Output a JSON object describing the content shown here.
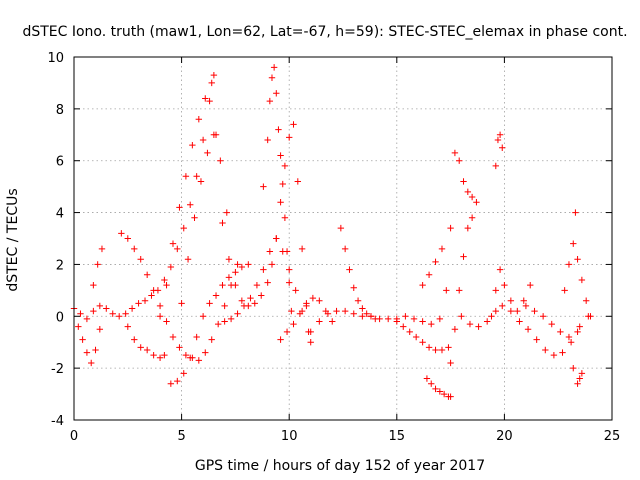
{
  "chart_data": {
    "type": "scatter",
    "title": "dSTEC Iono. truth (maw1, Lon=62, Lat=-67, h=59): STEC-STEC_elemax in phase cont.",
    "xlabel": "GPS time / hours of day 152 of year 2017",
    "ylabel": "dSTEC  / TECUs",
    "xlim": [
      0,
      25
    ],
    "ylim": [
      -4,
      10
    ],
    "xticks": [
      0,
      5,
      10,
      15,
      20,
      25
    ],
    "yticks": [
      -4,
      -2,
      0,
      2,
      4,
      6,
      8,
      10
    ],
    "grid": true,
    "legend": "none",
    "marker": "plus",
    "marker_color": "#ff0000",
    "series": [
      {
        "x": [
          0.0,
          0.3,
          0.6,
          0.9,
          1.2,
          1.5,
          1.8,
          2.1,
          2.4,
          2.7,
          3.0,
          3.3,
          3.6,
          3.9,
          4.2,
          4.5,
          4.8,
          5.1,
          5.4,
          5.7,
          6.0,
          6.3,
          6.5
        ],
        "y": [
          0.3,
          0.1,
          -0.1,
          0.2,
          0.4,
          0.3,
          0.1,
          0.0,
          0.1,
          0.3,
          0.5,
          0.6,
          0.8,
          1.0,
          1.4,
          1.9,
          2.6,
          3.4,
          4.3,
          5.4,
          6.8,
          8.3,
          9.3
        ]
      },
      {
        "x": [
          6.6,
          6.9,
          7.2,
          7.5,
          7.8,
          8.1,
          8.4,
          8.7,
          9.0,
          9.2,
          9.4,
          9.6,
          9.8,
          10.0,
          10.2,
          10.4,
          10.6,
          10.8,
          11.0
        ],
        "y": [
          7.0,
          3.6,
          2.2,
          1.2,
          0.6,
          0.4,
          0.5,
          0.8,
          1.3,
          2.0,
          3.0,
          4.4,
          5.8,
          6.9,
          7.4,
          5.2,
          2.6,
          0.5,
          -1.0
        ]
      },
      {
        "x": [
          8.8,
          9.0,
          9.1,
          9.2,
          9.3,
          9.4,
          9.5,
          9.6,
          9.7,
          9.8,
          9.9,
          10.0,
          10.1
        ],
        "y": [
          5.0,
          6.8,
          8.3,
          9.2,
          9.6,
          8.6,
          7.2,
          6.2,
          5.1,
          3.8,
          2.5,
          1.3,
          0.2
        ]
      },
      {
        "x": [
          0.2,
          0.4,
          0.6,
          0.8,
          1.0,
          1.2
        ],
        "y": [
          -0.4,
          -0.9,
          -1.4,
          -1.8,
          -1.3,
          -0.5
        ]
      },
      {
        "x": [
          0.9,
          1.1,
          1.3
        ],
        "y": [
          1.2,
          2.0,
          2.6
        ]
      },
      {
        "x": [
          2.2,
          2.5,
          2.8,
          3.1,
          3.4,
          3.7,
          4.0,
          4.3,
          4.6,
          4.9,
          5.2,
          5.5
        ],
        "y": [
          3.2,
          3.0,
          2.6,
          2.2,
          1.6,
          1.0,
          0.4,
          -0.2,
          -0.8,
          -1.2,
          -1.5,
          -1.6
        ]
      },
      {
        "x": [
          2.5,
          2.8,
          3.1,
          3.4,
          3.7,
          4.0,
          4.2
        ],
        "y": [
          -0.4,
          -0.9,
          -1.2,
          -1.3,
          -1.5,
          -1.6,
          -1.5
        ]
      },
      {
        "x": [
          4.5,
          4.8,
          5.1,
          5.4,
          5.7,
          6.0,
          6.3,
          6.6,
          6.9,
          7.2,
          7.5,
          7.8,
          8.1
        ],
        "y": [
          -2.6,
          -2.5,
          -2.2,
          -1.6,
          -0.8,
          0.0,
          0.5,
          0.8,
          1.2,
          1.5,
          1.7,
          1.9,
          2.0
        ]
      },
      {
        "x": [
          4.0,
          4.3,
          4.6,
          4.9,
          5.2,
          5.5,
          5.8,
          6.1,
          6.4
        ],
        "y": [
          0.0,
          1.2,
          2.8,
          4.2,
          5.4,
          6.6,
          7.6,
          8.4,
          9.0
        ]
      },
      {
        "x": [
          5.0,
          5.3,
          5.6,
          5.9,
          6.2,
          6.5,
          6.8,
          7.1
        ],
        "y": [
          0.5,
          2.2,
          3.8,
          5.2,
          6.3,
          7.0,
          6.0,
          4.0
        ]
      },
      {
        "x": [
          7.0,
          7.3,
          7.6,
          7.9,
          8.2,
          8.5,
          8.8,
          9.1,
          9.4,
          9.7,
          10.0,
          10.3,
          10.6,
          10.9
        ],
        "y": [
          -0.2,
          -0.1,
          0.1,
          0.4,
          0.7,
          1.2,
          1.8,
          2.5,
          3.0,
          2.5,
          1.8,
          1.0,
          0.2,
          -0.6
        ]
      },
      {
        "x": [
          5.8,
          6.1,
          6.4,
          6.7,
          7.0,
          7.3,
          7.6
        ],
        "y": [
          -1.7,
          -1.4,
          -0.9,
          -0.3,
          0.4,
          1.2,
          2.0
        ]
      },
      {
        "x": [
          9.6,
          9.9,
          10.2,
          10.5,
          10.8,
          11.1,
          11.4,
          11.7,
          12.0
        ],
        "y": [
          -0.9,
          -0.6,
          -0.3,
          0.1,
          0.4,
          0.7,
          0.6,
          0.2,
          -0.2
        ]
      },
      {
        "x": [
          12.4,
          12.6,
          12.8,
          13.0,
          13.2,
          13.4,
          13.6,
          13.8,
          14.0
        ],
        "y": [
          3.4,
          2.6,
          1.8,
          1.1,
          0.6,
          0.3,
          0.1,
          0.0,
          -0.1
        ]
      },
      {
        "x": [
          11.0,
          11.4,
          11.8,
          12.2,
          12.6,
          13.0,
          13.4,
          13.8,
          14.2,
          14.6,
          15.0,
          15.4,
          15.8,
          16.2,
          16.6,
          17.0
        ],
        "y": [
          -0.6,
          -0.2,
          0.1,
          0.2,
          0.2,
          0.1,
          0.0,
          0.0,
          -0.1,
          -0.1,
          -0.1,
          0.0,
          -0.1,
          -0.2,
          -0.3,
          -0.1
        ]
      },
      {
        "x": [
          15.0,
          15.3,
          15.6,
          15.9,
          16.2,
          16.5,
          16.8,
          17.1,
          17.4
        ],
        "y": [
          -0.2,
          -0.4,
          -0.6,
          -0.8,
          -1.0,
          -1.2,
          -1.3,
          -1.3,
          -1.2
        ]
      },
      {
        "x": [
          16.2,
          16.5,
          16.8,
          17.1
        ],
        "y": [
          1.2,
          1.6,
          2.1,
          2.6
        ]
      },
      {
        "x": [
          16.4,
          16.6,
          16.8,
          17.0,
          17.2,
          17.4,
          17.5
        ],
        "y": [
          -2.4,
          -2.6,
          -2.8,
          -2.9,
          -3.0,
          -3.1,
          -3.1
        ]
      },
      {
        "x": [
          17.3,
          17.5,
          17.7,
          17.9,
          18.1,
          18.3,
          18.5,
          18.7
        ],
        "y": [
          1.0,
          3.4,
          6.3,
          6.0,
          5.2,
          4.8,
          4.6,
          4.4
        ]
      },
      {
        "x": [
          17.5,
          17.7,
          17.9,
          18.1,
          18.3,
          18.5
        ],
        "y": [
          -1.8,
          -0.5,
          1.0,
          2.3,
          3.4,
          3.8
        ]
      },
      {
        "x": [
          18.0,
          18.4,
          18.8,
          19.2,
          19.6,
          19.9,
          20.3,
          20.7,
          21.1,
          21.5,
          21.9,
          22.3,
          22.7,
          23.1,
          23.5,
          23.9
        ],
        "y": [
          0.0,
          -0.3,
          -0.4,
          -0.2,
          0.2,
          0.4,
          0.2,
          -0.2,
          -0.5,
          -0.9,
          -1.3,
          -1.5,
          -1.4,
          -1.0,
          -0.4,
          0.0
        ]
      },
      {
        "x": [
          19.6,
          19.7,
          19.8,
          19.9
        ],
        "y": [
          5.8,
          6.8,
          7.0,
          6.5
        ]
      },
      {
        "x": [
          19.4,
          19.6,
          19.8,
          20.0,
          20.3,
          20.6,
          20.9,
          21.2
        ],
        "y": [
          0.0,
          1.0,
          1.8,
          1.2,
          0.6,
          0.2,
          0.6,
          1.2
        ]
      },
      {
        "x": [
          21.0,
          21.4,
          21.8,
          22.2,
          22.6,
          23.0,
          23.4
        ],
        "y": [
          0.4,
          0.2,
          0.0,
          -0.3,
          -0.6,
          -0.8,
          -0.6
        ]
      },
      {
        "x": [
          22.8,
          23.0,
          23.2,
          23.4,
          23.6,
          23.8,
          24.0
        ],
        "y": [
          1.0,
          2.0,
          2.8,
          2.2,
          1.4,
          0.6,
          0.0
        ]
      },
      {
        "x": [
          23.2,
          23.4,
          23.5,
          23.6
        ],
        "y": [
          -2.0,
          -2.6,
          -2.4,
          -2.2
        ]
      },
      {
        "x": [
          23.3
        ],
        "y": [
          4.0
        ]
      }
    ]
  }
}
